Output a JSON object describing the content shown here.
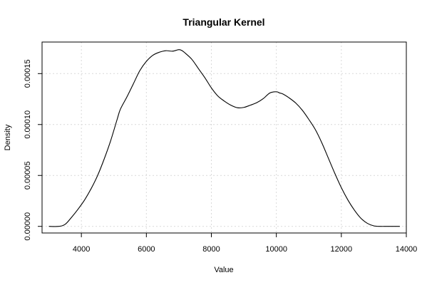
{
  "chart_data": {
    "type": "line",
    "title": "Triangular Kernel",
    "xlabel": "Value",
    "ylabel": "Density",
    "xlim": [
      2790,
      14000
    ],
    "ylim": [
      -6.5e-06,
      0.000181
    ],
    "xticks": [
      4000,
      6000,
      8000,
      10000,
      12000,
      14000
    ],
    "xtick_labels": [
      "4000",
      "6000",
      "8000",
      "10000",
      "12000",
      "14000"
    ],
    "yticks": [
      0.0,
      5e-05,
      0.0001,
      0.00015
    ],
    "ytick_labels": [
      "0.00000",
      "0.00005",
      "0.00010",
      "0.00015"
    ],
    "grid": true,
    "series": [
      {
        "x": [
          3000,
          3300,
          3500,
          3700,
          3900,
          4100,
          4300,
          4500,
          4700,
          4900,
          5100,
          5200,
          5400,
          5600,
          5800,
          6000,
          6200,
          6400,
          6600,
          6800,
          7000,
          7100,
          7200,
          7400,
          7600,
          7800,
          8000,
          8200,
          8400,
          8600,
          8800,
          9000,
          9200,
          9400,
          9600,
          9800,
          10000,
          10100,
          10200,
          10400,
          10600,
          10800,
          11000,
          11200,
          11400,
          11600,
          11800,
          12000,
          12200,
          12400,
          12600,
          12800,
          13000,
          13200,
          13400,
          13600,
          13800
        ],
        "y": [
          0.0,
          0.0,
          2e-06,
          9e-06,
          1.7e-05,
          2.6e-05,
          3.7e-05,
          5e-05,
          6.6e-05,
          8.4e-05,
          0.000105,
          0.000115,
          0.000127,
          0.00014,
          0.000153,
          0.000162,
          0.000168,
          0.000171,
          0.0001725,
          0.000172,
          0.0001735,
          0.0001725,
          0.00017,
          0.000164,
          0.000155,
          0.000146,
          0.000136,
          0.000128,
          0.000123,
          0.000119,
          0.0001165,
          0.0001168,
          0.000119,
          0.0001215,
          0.0001255,
          0.000131,
          0.0001322,
          0.000131,
          0.00013,
          0.000126,
          0.000121,
          0.000114,
          0.000105,
          9.5e-05,
          8.2e-05,
          6.7e-05,
          5.2e-05,
          3.8e-05,
          2.6e-05,
          1.6e-05,
          8e-06,
          3e-06,
          5e-07,
          0.0,
          0.0,
          0.0,
          0.0
        ]
      }
    ]
  }
}
